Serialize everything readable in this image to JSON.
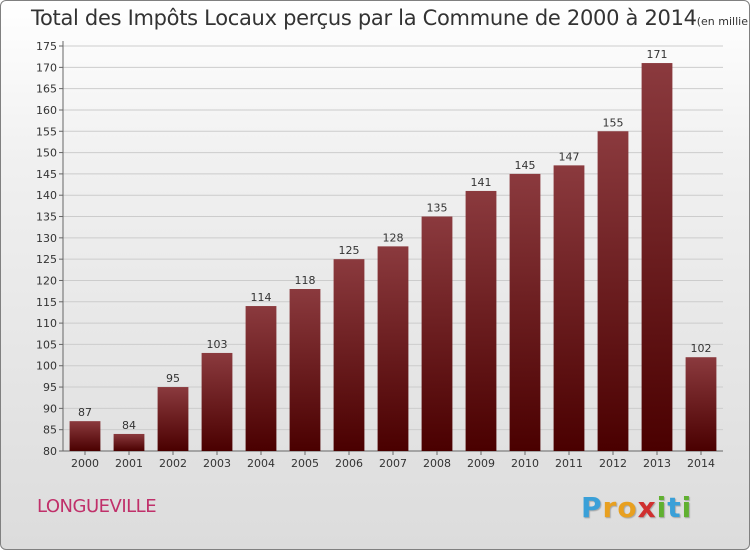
{
  "title": "Total des Impôts Locaux perçus par la Commune de 2000 à 2014",
  "unit": "(en milliers d'€)",
  "commune": "LONGUEVILLE",
  "logo": {
    "letters": [
      "P",
      "r",
      "o",
      "x",
      "i",
      "t",
      "i"
    ],
    "colors": [
      "#3aa0d8",
      "#e8a020",
      "#e8a020",
      "#d03030",
      "#60b030",
      "#3aa0d8",
      "#60b030"
    ]
  },
  "colors": {
    "bar_top": "#8b3a3e",
    "bar_bottom": "#4a0000",
    "title": "#333333",
    "commune": "#c0306a",
    "grid": "#cccccc",
    "axis": "#666666"
  },
  "chart_data": {
    "type": "bar",
    "title": "Total des Impôts Locaux perçus par la Commune de 2000 à 2014",
    "xlabel": "",
    "ylabel": "",
    "ylim": [
      80,
      175
    ],
    "ytick_step": 5,
    "categories": [
      "2000",
      "2001",
      "2002",
      "2003",
      "2004",
      "2005",
      "2006",
      "2007",
      "2008",
      "2009",
      "2010",
      "2011",
      "2012",
      "2013",
      "2014"
    ],
    "values": [
      87,
      84,
      95,
      103,
      114,
      118,
      125,
      128,
      135,
      141,
      145,
      147,
      155,
      171,
      102
    ],
    "value_labels": [
      "87",
      "84",
      "95",
      "103",
      "114",
      "118",
      "125",
      "128",
      "135",
      "141",
      "145",
      "147",
      "155",
      "171",
      "102"
    ],
    "grid": true
  }
}
